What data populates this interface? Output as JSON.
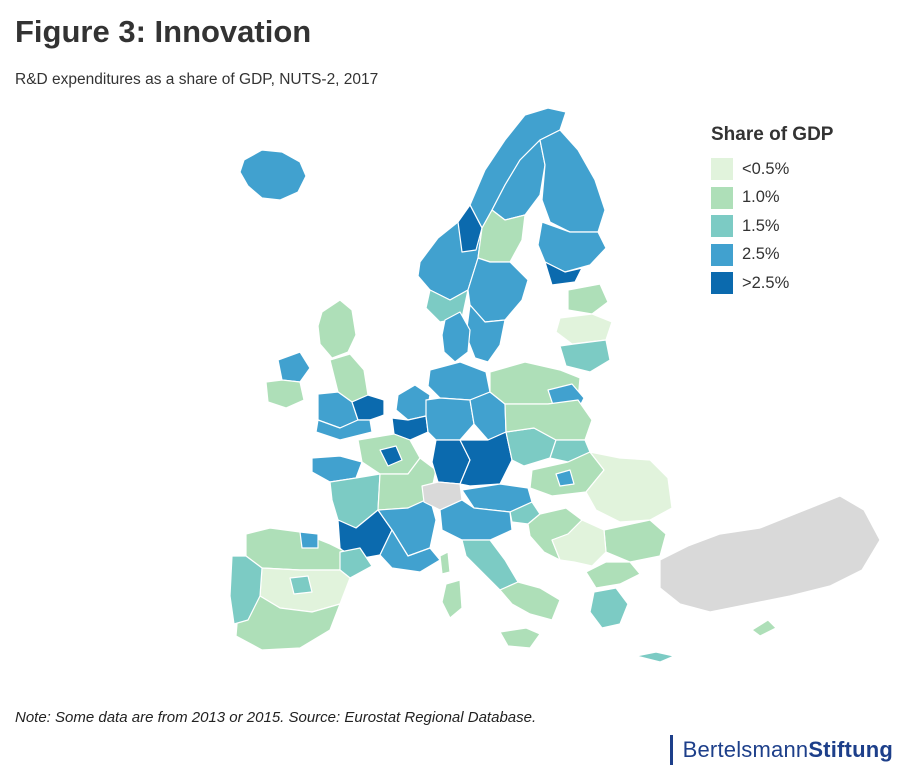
{
  "header": {
    "title": "Figure 3: Innovation",
    "subtitle": "R&D expenditures as a share of GDP, NUTS-2, 2017"
  },
  "legend": {
    "title": "Share of GDP",
    "items": [
      {
        "label": "<0.5%",
        "color": "#e1f3dc"
      },
      {
        "label": "1.0%",
        "color": "#aedfb8"
      },
      {
        "label": "1.5%",
        "color": "#7ccbc4"
      },
      {
        "label": "2.5%",
        "color": "#41a1cf"
      },
      {
        "label": ">2.5%",
        "color": "#0b6aae"
      }
    ],
    "no_data_color": "#d9d9d9"
  },
  "footer": {
    "note": "Note: Some data are from 2013 or 2015. Source: Eurostat Regional Database.",
    "brand_regular": "Bertelsmann",
    "brand_bold": "Stiftung"
  }
}
